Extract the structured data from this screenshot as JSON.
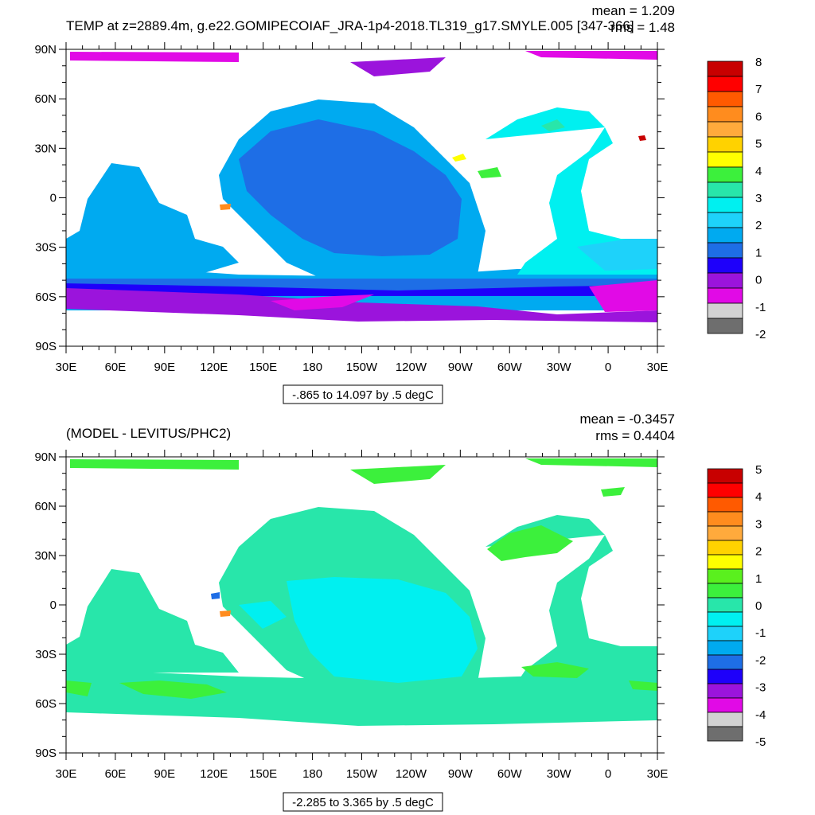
{
  "colors": {
    "panel1": [
      "#6e6e6e",
      "#d2d2d2",
      "#e10ae6",
      "#9b14dc",
      "#1e00fa",
      "#1e6ee6",
      "#00aaf0",
      "#1ed2fa",
      "#00f0f0",
      "#28e6aa",
      "#3cf03c",
      "#ffff00",
      "#ffd200",
      "#ffaa3c",
      "#ff8c1e",
      "#ff5a00",
      "#ff0000",
      "#c80000"
    ],
    "panel2": [
      "#6e6e6e",
      "#d2d2d2",
      "#e10ae6",
      "#9b14dc",
      "#1e00fa",
      "#1e6ee6",
      "#00aaf0",
      "#1ed2fa",
      "#00f0f0",
      "#28e6aa",
      "#3cf03c",
      "#5af01e",
      "#ffff00",
      "#ffd200",
      "#ffaa3c",
      "#ff8c1e",
      "#ff5a00",
      "#ff0000",
      "#c80000"
    ],
    "land": "#ffffff"
  },
  "axes": {
    "lat_labels": [
      "90N",
      "60N",
      "30N",
      "0",
      "30S",
      "60S",
      "90S"
    ],
    "lon_labels": [
      "30E",
      "60E",
      "90E",
      "120E",
      "150E",
      "180",
      "150W",
      "120W",
      "90W",
      "60W",
      "30W",
      "0",
      "30E"
    ]
  },
  "panel1": {
    "title": "TEMP at z=2889.4m, g.e22.GOMIPECOIAF_JRA-1p4-2018.TL319_g17.SMYLE.005 [347-366]",
    "mean": "mean = 1.209",
    "rms": "rms = 1.48",
    "range": "-.865 to 14.097 by .5 degC",
    "colorbar_labels": [
      "8",
      "7",
      "6",
      "5",
      "4",
      "3",
      "2",
      "1",
      "0",
      "-1",
      "-2"
    ]
  },
  "panel2": {
    "title": "(MODEL - LEVITUS/PHC2)",
    "mean": "mean = -0.3457",
    "rms": "rms = 0.4404",
    "range": "-2.285 to 3.365 by .5 degC",
    "colorbar_labels": [
      "5",
      "4",
      "3",
      "2",
      "1",
      "0",
      "-1",
      "-2",
      "-3",
      "-4",
      "-5"
    ]
  }
}
